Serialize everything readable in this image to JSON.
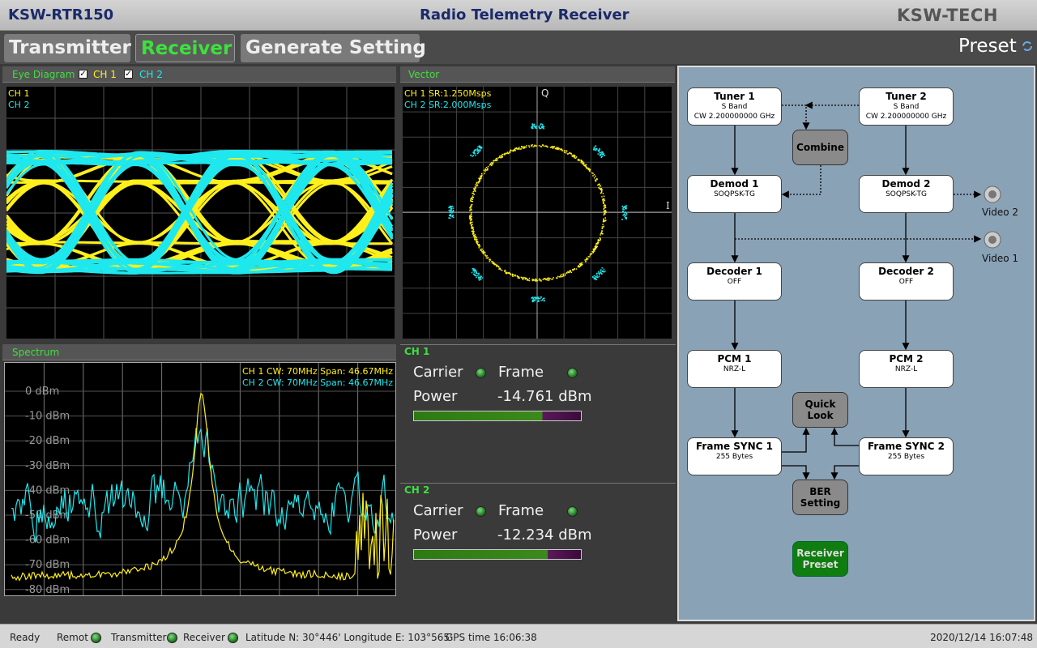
{
  "header": {
    "model": "KSW-RTR150",
    "title": "Radio Telemetry Receiver",
    "brand": "KSW-TECH"
  },
  "tabs": [
    "Transmitter",
    "Receiver",
    "Generate Setting"
  ],
  "preset": "Preset",
  "eye": {
    "title": "Eye Diagram",
    "checks": [
      "CH 1",
      "CH 2"
    ],
    "legend": [
      "CH 1",
      "CH 2"
    ]
  },
  "vector": {
    "title": "Vector",
    "info": [
      "CH 1 SR:1.250Msps",
      "CH 2 SR:2.000Msps"
    ],
    "q": "Q",
    "i": "I"
  },
  "spectrum": {
    "title": "Spectrum",
    "info": [
      "CH 1 CW: 70MHz Span: 46.67MHz",
      "CH 2 CW: 70MHz Span: 46.67MHz"
    ],
    "levels": [
      "0 dBm",
      "-10 dBm",
      "-20 dBm",
      "-30 dBm",
      "-40 dBm",
      "-50 dBm",
      "-60 dBm",
      "-70 dBm",
      "-80 dBm"
    ]
  },
  "channels": [
    {
      "title": "CH 1",
      "carrier": "Carrier",
      "frame": "Frame",
      "power_label": "Power",
      "power": "-14.761 dBm"
    },
    {
      "title": "CH 2",
      "carrier": "Carrier",
      "frame": "Frame",
      "power_label": "Power",
      "power": "-12.234 dBm"
    }
  ],
  "diagram": {
    "nodes": [
      {
        "title": "Tuner 1",
        "lines": [
          "S Band",
          "CW 2.200000000 GHz"
        ]
      },
      {
        "title": "Tuner 2",
        "lines": [
          "S Band",
          "CW 2.200000000 GHz"
        ]
      },
      {
        "title": "Combine"
      },
      {
        "title": "Demod 1",
        "lines": [
          "SOQPSK-TG"
        ]
      },
      {
        "title": "Demod 2",
        "lines": [
          "SOQPSK-TG"
        ]
      },
      {
        "title": "Decoder 1",
        "lines": [
          "OFF"
        ]
      },
      {
        "title": "Decoder 2",
        "lines": [
          "OFF"
        ]
      },
      {
        "title": "PCM 1",
        "lines": [
          "NRZ-L"
        ]
      },
      {
        "title": "PCM 2",
        "lines": [
          "NRZ-L"
        ]
      },
      {
        "title": "Frame SYNC 1",
        "lines": [
          "255 Bytes"
        ]
      },
      {
        "title": "Frame SYNC 2",
        "lines": [
          "255 Bytes"
        ]
      },
      {
        "title": "Quick Look"
      },
      {
        "title": "BER Setting"
      },
      {
        "title": "Receiver Preset"
      }
    ],
    "outputs": [
      "Video 2",
      "Video 1"
    ]
  },
  "status": {
    "ready": "Ready",
    "remote": "Remot",
    "transmitter": "Transmitter",
    "receiver": "Receiver",
    "location": "Latitude N: 30°446' Longitude E: 103°565'",
    "gps": "GPS time 16:06:38",
    "datetime": "2020/12/14 16:07:48"
  }
}
